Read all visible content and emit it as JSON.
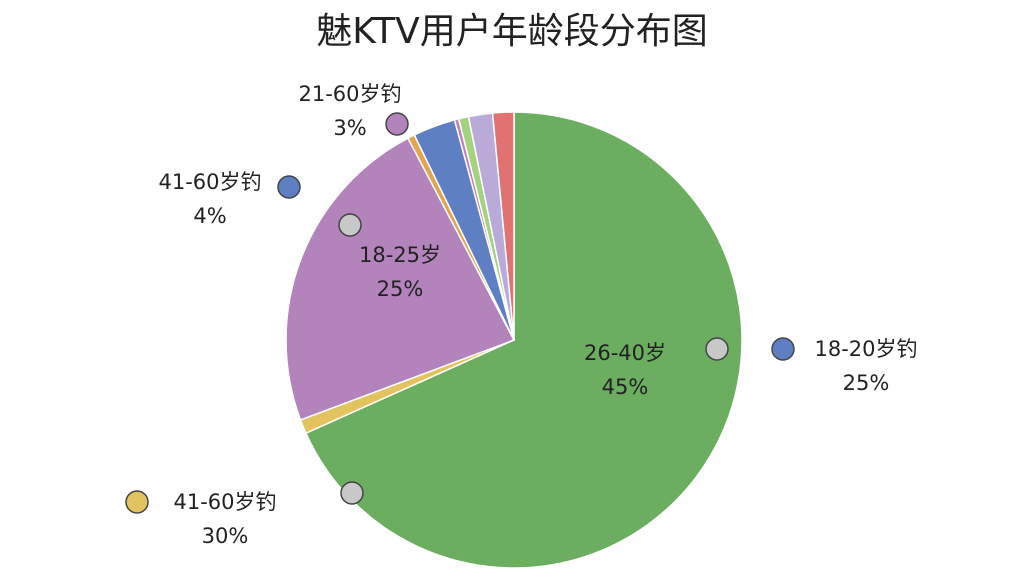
{
  "chart_data": {
    "type": "pie",
    "title": "魅KTV用户年龄段分布图",
    "values": [
      68.3,
      1,
      23,
      0.5,
      3,
      0.3,
      0.7,
      1.7,
      1.5
    ],
    "colors": [
      "#6cae5f",
      "#e2c35e",
      "#b383bb",
      "#e3a34f",
      "#5e80c2",
      "#c17fc0",
      "#a3d37f",
      "#b9aad8",
      "#e07272"
    ],
    "annotations": [
      {
        "lines": [
          "21-60岁钓",
          "3%"
        ],
        "color": "#b383bb"
      },
      {
        "lines": [
          "41-60岁钓",
          "4%"
        ],
        "color": "#5e80c2"
      },
      {
        "lines": [
          "18-25岁",
          "25%"
        ],
        "color": "#c8c8c8"
      },
      {
        "lines": [
          "26-40岁",
          "45%"
        ],
        "color": "#c8c8c8"
      },
      {
        "lines": [
          "18-20岁钓",
          "25%"
        ],
        "color": "#5e80c2"
      },
      {
        "lines": [
          "41-60岁钓",
          "30%"
        ],
        "color": "#e2c35e"
      }
    ]
  }
}
